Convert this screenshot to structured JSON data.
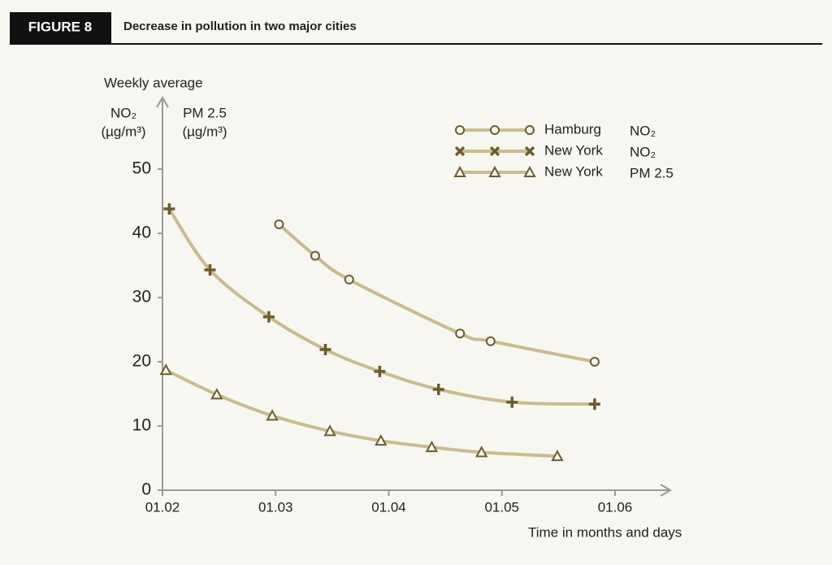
{
  "chart_data": {
    "type": "line",
    "figure_label": "FIGURE 8",
    "title": "Decrease in pollution in two major cities",
    "y_label": "Weekly average",
    "y_axis_labels": [
      {
        "name": "NO₂",
        "unit": "(µg/m³)"
      },
      {
        "name": "PM 2.5",
        "unit": "(µg/m³)"
      }
    ],
    "x_label": "Time in months and days",
    "xlim": [
      2,
      6.5
    ],
    "xticks": [
      {
        "value": 2,
        "label": "01.02"
      },
      {
        "value": 3,
        "label": "01.03"
      },
      {
        "value": 4,
        "label": "01.04"
      },
      {
        "value": 5,
        "label": "01.05"
      },
      {
        "value": 6,
        "label": "01.06"
      }
    ],
    "ylim": [
      0,
      60
    ],
    "yticks": [
      0,
      10,
      20,
      30,
      40,
      50
    ],
    "series": [
      {
        "name": "Hamburg",
        "pollutant": "NO₂",
        "marker": "circle",
        "color": "#c9bb8d",
        "x": [
          3.03,
          3.35,
          3.65,
          4.63,
          4.9,
          5.82
        ],
        "values": [
          41.4,
          36.5,
          32.8,
          24.4,
          23.2,
          20.0
        ]
      },
      {
        "name": "New York",
        "pollutant": "NO₂",
        "marker": "plus",
        "color": "#c9bb8d",
        "x": [
          2.06,
          2.42,
          2.94,
          3.44,
          3.92,
          4.44,
          5.09,
          5.82
        ],
        "values": [
          43.8,
          34.3,
          27.0,
          21.9,
          18.5,
          15.7,
          13.7,
          13.4
        ]
      },
      {
        "name": "New York",
        "pollutant": "PM 2.5",
        "marker": "triangle",
        "color": "#c9bb8d",
        "x": [
          2.03,
          2.48,
          2.97,
          3.48,
          3.93,
          4.38,
          4.82,
          5.49
        ],
        "values": [
          18.7,
          14.9,
          11.6,
          9.2,
          7.7,
          6.7,
          5.9,
          5.3
        ]
      }
    ]
  }
}
